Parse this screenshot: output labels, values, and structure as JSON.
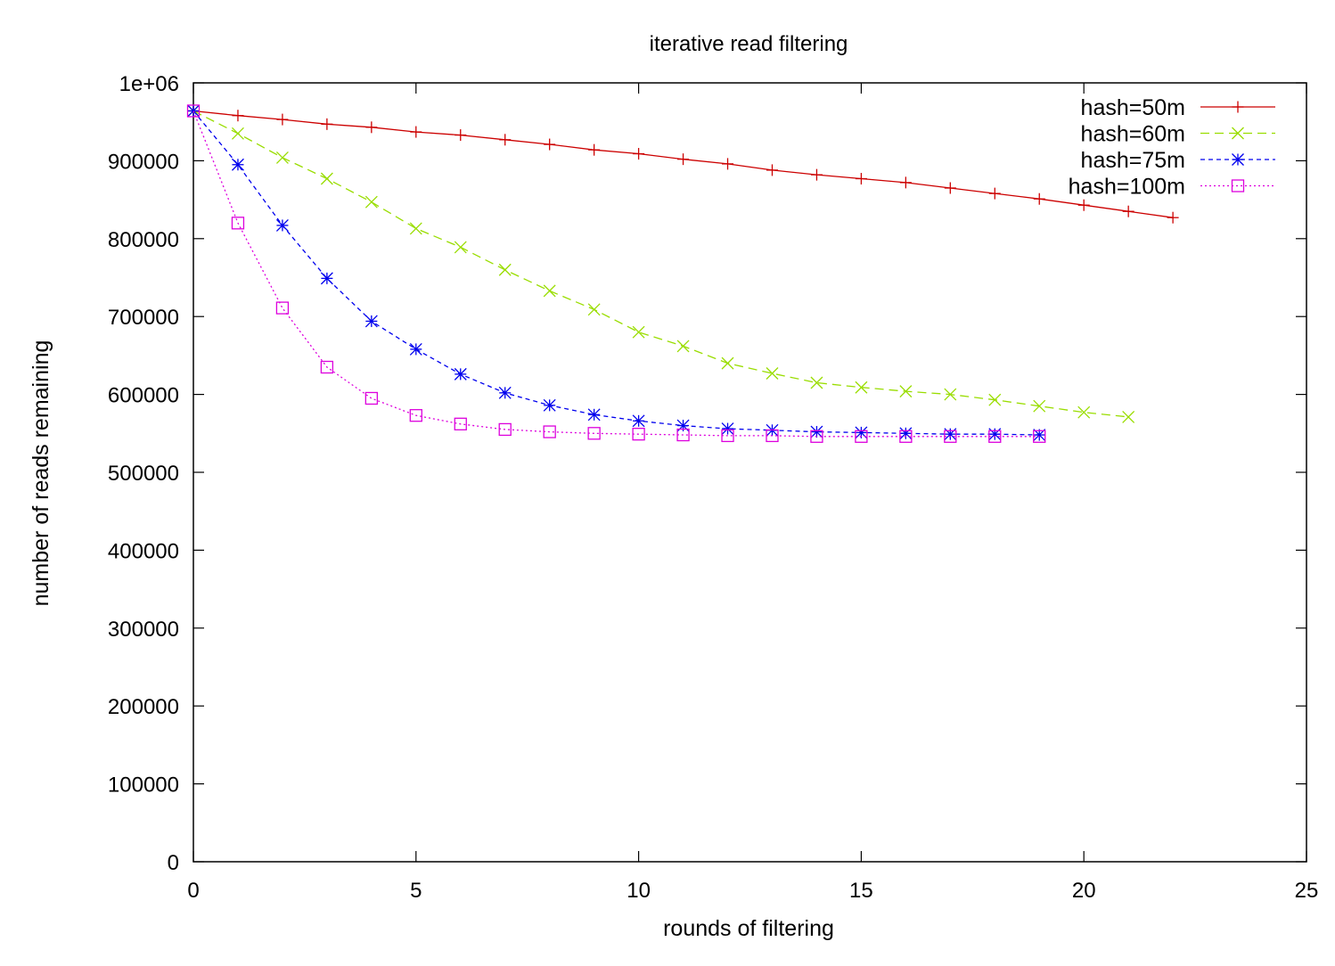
{
  "chart_data": {
    "type": "line",
    "title": "iterative read filtering",
    "xlabel": "rounds of filtering",
    "ylabel": "number of reads remaining",
    "xlim": [
      0,
      25
    ],
    "ylim": [
      0,
      1000000
    ],
    "x_ticks": [
      0,
      5,
      10,
      15,
      20,
      25
    ],
    "x_tick_labels": [
      "0",
      "5",
      "10",
      "15",
      "20",
      "25"
    ],
    "y_ticks": [
      0,
      100000,
      200000,
      300000,
      400000,
      500000,
      600000,
      700000,
      800000,
      900000,
      1000000
    ],
    "y_tick_labels": [
      "0",
      "100000",
      "200000",
      "300000",
      "400000",
      "500000",
      "600000",
      "700000",
      "800000",
      "900000",
      "1e+06"
    ],
    "grid": false,
    "legend_position": "top-right",
    "series": [
      {
        "name": "hash=50m",
        "color": "#cc0000",
        "marker": "plus",
        "dash": "solid",
        "x": [
          0,
          1,
          2,
          3,
          4,
          5,
          6,
          7,
          8,
          9,
          10,
          11,
          12,
          13,
          14,
          15,
          16,
          17,
          18,
          19,
          20,
          21,
          22
        ],
        "values": [
          964000,
          958000,
          953000,
          947000,
          943000,
          937000,
          933000,
          927000,
          921000,
          914000,
          909000,
          902000,
          896000,
          888000,
          882000,
          877000,
          872000,
          865000,
          858000,
          851000,
          843000,
          835000,
          827000
        ]
      },
      {
        "name": "hash=60m",
        "color": "#99dd00",
        "marker": "cross",
        "dash": "dashed",
        "x": [
          0,
          1,
          2,
          3,
          4,
          5,
          6,
          7,
          8,
          9,
          10,
          11,
          12,
          13,
          14,
          15,
          16,
          17,
          18,
          19,
          20,
          21
        ],
        "values": [
          964000,
          935000,
          904000,
          877000,
          847000,
          813000,
          789000,
          760000,
          733000,
          709000,
          680000,
          662000,
          640000,
          627000,
          615000,
          609000,
          604000,
          600000,
          593000,
          585000,
          577000,
          571000
        ]
      },
      {
        "name": "hash=75m",
        "color": "#0000ee",
        "marker": "star",
        "dash": "short-dashed",
        "x": [
          0,
          1,
          2,
          3,
          4,
          5,
          6,
          7,
          8,
          9,
          10,
          11,
          12,
          13,
          14,
          15,
          16,
          17,
          18,
          19
        ],
        "values": [
          964000,
          895000,
          817000,
          749000,
          694000,
          658000,
          626000,
          602000,
          586000,
          574000,
          566000,
          560000,
          556000,
          554000,
          552000,
          551000,
          550000,
          549000,
          549000,
          548000
        ]
      },
      {
        "name": "hash=100m",
        "color": "#dd00dd",
        "marker": "square",
        "dash": "dotted",
        "x": [
          0,
          1,
          2,
          3,
          4,
          5,
          6,
          7,
          8,
          9,
          10,
          11,
          12,
          13,
          14,
          15,
          16,
          17,
          18,
          19
        ],
        "values": [
          964000,
          820000,
          711000,
          635000,
          595000,
          573000,
          562000,
          555000,
          552000,
          550000,
          549000,
          548000,
          547000,
          547000,
          546000,
          546000,
          546000,
          546000,
          546000,
          546000
        ]
      }
    ]
  }
}
